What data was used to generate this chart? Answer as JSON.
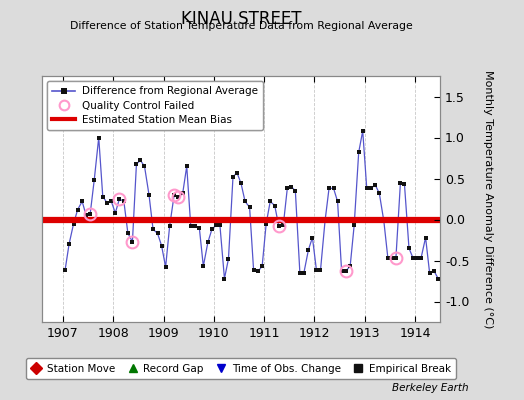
{
  "title": "KINAU STREET",
  "subtitle": "Difference of Station Temperature Data from Regional Average",
  "ylabel_right": "Monthly Temperature Anomaly Difference (°C)",
  "xlim": [
    1906.58,
    1914.5
  ],
  "ylim": [
    -1.25,
    1.75
  ],
  "yticks": [
    -1.0,
    -0.5,
    0.0,
    0.5,
    1.0,
    1.5
  ],
  "xticks": [
    1907,
    1908,
    1909,
    1910,
    1911,
    1912,
    1913,
    1914
  ],
  "bias": 0.0,
  "background_color": "#dcdcdc",
  "plot_bg_color": "#ffffff",
  "line_color": "#5555cc",
  "marker_color": "#111111",
  "bias_color": "#dd0000",
  "qc_color": "#ff99cc",
  "footer": "Berkeley Earth",
  "times": [
    1907.04,
    1907.12,
    1907.21,
    1907.29,
    1907.38,
    1907.46,
    1907.54,
    1907.62,
    1907.71,
    1907.79,
    1907.88,
    1907.96,
    1908.04,
    1908.12,
    1908.21,
    1908.29,
    1908.38,
    1908.46,
    1908.54,
    1908.62,
    1908.71,
    1908.79,
    1908.88,
    1908.96,
    1909.04,
    1909.12,
    1909.21,
    1909.29,
    1909.38,
    1909.46,
    1909.54,
    1909.62,
    1909.71,
    1909.79,
    1909.88,
    1909.96,
    1910.04,
    1910.12,
    1910.21,
    1910.29,
    1910.38,
    1910.46,
    1910.54,
    1910.62,
    1910.71,
    1910.79,
    1910.88,
    1910.96,
    1911.04,
    1911.12,
    1911.21,
    1911.29,
    1911.38,
    1911.46,
    1911.54,
    1911.62,
    1911.71,
    1911.79,
    1911.88,
    1911.96,
    1912.04,
    1912.12,
    1912.21,
    1912.29,
    1912.38,
    1912.46,
    1912.54,
    1912.62,
    1912.71,
    1912.79,
    1912.88,
    1912.96,
    1913.04,
    1913.12,
    1913.21,
    1913.29,
    1913.38,
    1913.46,
    1913.54,
    1913.62,
    1913.71,
    1913.79,
    1913.88,
    1913.96,
    1914.04,
    1914.12,
    1914.21,
    1914.29,
    1914.38,
    1914.46
  ],
  "values": [
    -0.62,
    -0.3,
    -0.05,
    0.12,
    0.22,
    0.05,
    0.07,
    0.48,
    1.0,
    0.28,
    0.2,
    0.22,
    0.08,
    0.25,
    0.22,
    -0.17,
    -0.27,
    0.68,
    0.72,
    0.65,
    0.3,
    -0.12,
    -0.17,
    -0.32,
    -0.58,
    -0.08,
    0.3,
    0.27,
    0.32,
    0.65,
    -0.08,
    -0.08,
    -0.1,
    -0.57,
    -0.28,
    -0.12,
    -0.07,
    -0.07,
    -0.72,
    -0.48,
    0.52,
    0.57,
    0.44,
    0.22,
    0.15,
    -0.62,
    -0.63,
    -0.57,
    -0.05,
    0.22,
    0.17,
    -0.08,
    -0.07,
    0.38,
    0.4,
    0.35,
    -0.65,
    -0.65,
    -0.37,
    -0.22,
    -0.62,
    -0.62,
    -0.02,
    0.38,
    0.38,
    0.22,
    -0.63,
    -0.63,
    -0.57,
    -0.07,
    0.82,
    1.08,
    0.38,
    0.38,
    0.42,
    0.32,
    -0.02,
    -0.47,
    -0.47,
    -0.47,
    0.45,
    0.43,
    -0.35,
    -0.47,
    -0.47,
    -0.47,
    -0.22,
    -0.65,
    -0.63,
    -0.72
  ],
  "qc_failed_indices": [
    6,
    13,
    16,
    26,
    27,
    51,
    67,
    79
  ],
  "bottom_legend": [
    {
      "label": "Station Move",
      "marker": "D",
      "color": "#cc0000"
    },
    {
      "label": "Record Gap",
      "marker": "^",
      "color": "#007700"
    },
    {
      "label": "Time of Obs. Change",
      "marker": "v",
      "color": "#0000cc"
    },
    {
      "label": "Empirical Break",
      "marker": "s",
      "color": "#111111"
    }
  ]
}
